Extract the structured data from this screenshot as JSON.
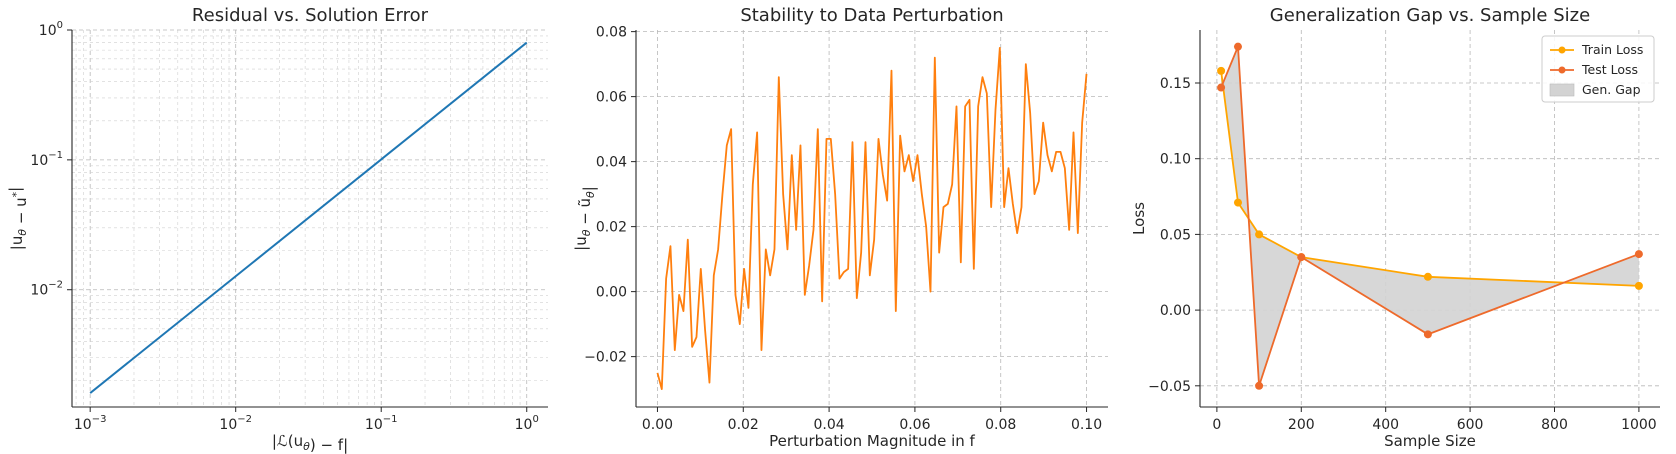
{
  "chart_data": [
    {
      "type": "line",
      "title": "Residual vs. Solution Error",
      "xlabel": "|ℒ(u_θ) − f|",
      "ylabel": "|u_θ − u*|",
      "xscale": "log",
      "yscale": "log",
      "xlim": [
        0.00075,
        1.4
      ],
      "ylim": [
        0.00125,
        1.0
      ],
      "xticks": [
        0.001,
        0.01,
        0.1,
        1
      ],
      "xtick_labels": [
        {
          "base": "10",
          "exp": "−3"
        },
        {
          "base": "10",
          "exp": "−2"
        },
        {
          "base": "10",
          "exp": "−1"
        },
        {
          "base": "10",
          "exp": "0"
        }
      ],
      "yticks": [
        0.01,
        0.1,
        1
      ],
      "ytick_labels": [
        {
          "base": "10",
          "exp": "−2"
        },
        {
          "base": "10",
          "exp": "−1"
        },
        {
          "base": "10",
          "exp": "0"
        }
      ],
      "grid": true,
      "series": [
        {
          "color": "#1f77b4",
          "x": [
            0.001,
            1.0
          ],
          "y": [
            0.0016,
            0.8
          ]
        }
      ]
    },
    {
      "type": "line",
      "title": "Stability to Data Perturbation",
      "xlabel": "Perturbation Magnitude in f",
      "ylabel": "|u_θ − ũ_θ|",
      "xlim": [
        -0.005,
        0.105
      ],
      "ylim": [
        -0.0355,
        0.0805
      ],
      "xticks": [
        0,
        0.02,
        0.04,
        0.06,
        0.08,
        0.1
      ],
      "xtick_labels": [
        "0.00",
        "0.02",
        "0.04",
        "0.06",
        "0.08",
        "0.10"
      ],
      "yticks": [
        -0.02,
        0,
        0.02,
        0.04,
        0.06,
        0.08
      ],
      "ytick_labels": [
        "−0.02",
        "0.00",
        "0.02",
        "0.04",
        "0.06",
        "0.08"
      ],
      "grid": true,
      "series": [
        {
          "color": "#ff7f0e",
          "x_start": 0,
          "x_step": 0.00101,
          "y": [
            -0.025,
            -0.03,
            0.004,
            0.014,
            -0.018,
            -0.001,
            -0.006,
            0.016,
            -0.017,
            -0.014,
            0.007,
            -0.012,
            -0.028,
            0.005,
            0.013,
            0.03,
            0.045,
            0.05,
            -0.001,
            -0.01,
            0.007,
            -0.005,
            0.033,
            0.049,
            -0.018,
            0.013,
            0.005,
            0.013,
            0.066,
            0.03,
            0.013,
            0.042,
            0.019,
            0.045,
            -0.001,
            0.008,
            0.019,
            0.05,
            -0.003,
            0.047,
            0.047,
            0.03,
            0.004,
            0.006,
            0.007,
            0.046,
            -0.002,
            0.012,
            0.046,
            0.005,
            0.016,
            0.047,
            0.036,
            0.028,
            0.068,
            -0.006,
            0.048,
            0.037,
            0.042,
            0.034,
            0.042,
            0.03,
            0.02,
            0.0,
            0.072,
            0.012,
            0.026,
            0.027,
            0.033,
            0.057,
            0.009,
            0.057,
            0.059,
            0.007,
            0.057,
            0.066,
            0.061,
            0.026,
            0.056,
            0.075,
            0.026,
            0.038,
            0.027,
            0.018,
            0.026,
            0.07,
            0.055,
            0.03,
            0.034,
            0.052,
            0.042,
            0.037,
            0.043,
            0.043,
            0.038,
            0.019,
            0.049,
            0.018,
            0.052,
            0.067
          ]
        }
      ]
    },
    {
      "type": "line",
      "title": "Generalization Gap vs. Sample Size",
      "xlabel": "Sample Size",
      "ylabel": "Loss",
      "xlim": [
        -40,
        1050
      ],
      "ylim": [
        -0.064,
        0.185
      ],
      "xticks": [
        0,
        200,
        400,
        600,
        800,
        1000
      ],
      "xtick_labels": [
        "0",
        "200",
        "400",
        "600",
        "800",
        "1000"
      ],
      "yticks": [
        -0.05,
        0,
        0.05,
        0.1,
        0.15
      ],
      "ytick_labels": [
        "−0.05",
        "0.00",
        "0.05",
        "0.10",
        "0.15"
      ],
      "grid": true,
      "legend": "top-right",
      "x": [
        10,
        50,
        100,
        200,
        500,
        1000
      ],
      "series": [
        {
          "name": "Train Loss",
          "color": "#ffa500",
          "values": [
            0.158,
            0.071,
            0.05,
            0.035,
            0.022,
            0.016
          ]
        },
        {
          "name": "Test Loss",
          "color": "#ee6a2b",
          "values": [
            0.147,
            0.174,
            -0.05,
            0.035,
            -0.016,
            0.037
          ]
        }
      ],
      "fill": {
        "name": "Gen. Gap",
        "color": "#d3d3d3"
      }
    }
  ]
}
